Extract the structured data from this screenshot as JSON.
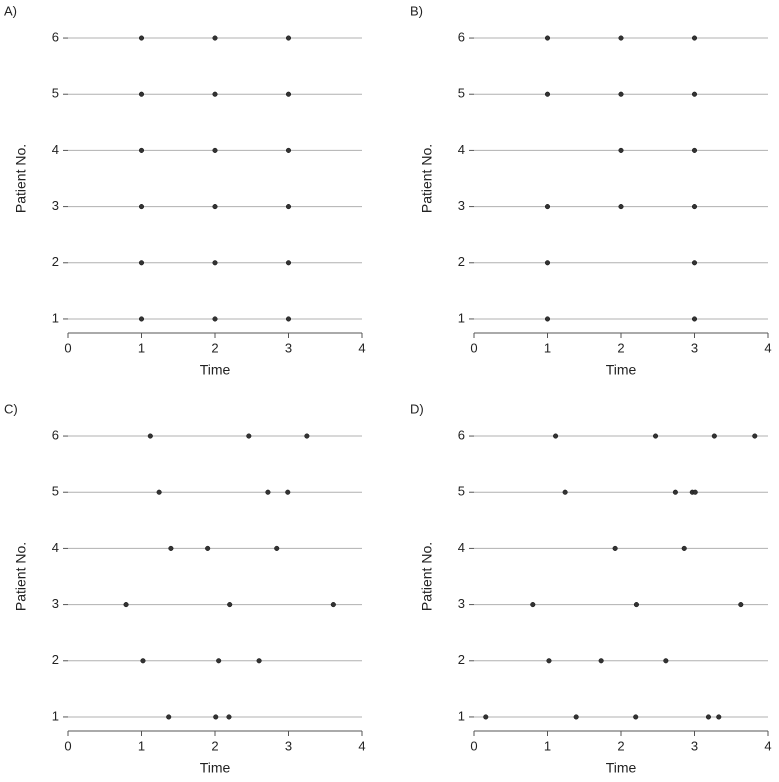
{
  "chart_data": [
    {
      "type": "scatter",
      "panel_label": "A)",
      "xlabel": "Time",
      "ylabel": "Patient No.",
      "x": [
        1,
        2,
        3,
        1,
        2,
        3,
        1,
        2,
        3,
        1,
        2,
        3,
        1,
        2,
        3,
        1,
        2,
        3
      ],
      "values": [
        1,
        1,
        1,
        2,
        2,
        2,
        3,
        3,
        3,
        4,
        4,
        4,
        5,
        5,
        5,
        6,
        6,
        6
      ],
      "xlim": [
        0,
        4
      ],
      "ylim": [
        0.75,
        6.25
      ],
      "xticks": [
        0,
        1,
        2,
        3,
        4
      ],
      "yticks": [
        1,
        2,
        3,
        4,
        5,
        6
      ],
      "color": "#333333",
      "grid": true
    },
    {
      "type": "scatter",
      "panel_label": "B)",
      "xlabel": "Time",
      "ylabel": "Patient No.",
      "x": [
        1,
        3,
        1,
        3,
        1,
        2,
        3,
        2,
        3,
        1,
        2,
        3,
        1,
        2,
        3
      ],
      "values": [
        1,
        1,
        2,
        2,
        3,
        3,
        3,
        4,
        4,
        5,
        5,
        5,
        6,
        6,
        6
      ],
      "xlim": [
        0,
        4
      ],
      "ylim": [
        0.75,
        6.25
      ],
      "xticks": [
        0,
        1,
        2,
        3,
        4
      ],
      "yticks": [
        1,
        2,
        3,
        4,
        5,
        6
      ],
      "color": "#333333",
      "grid": true
    },
    {
      "type": "scatter",
      "panel_label": "C)",
      "xlabel": "Time",
      "ylabel": "Patient No.",
      "x": [
        1.37,
        2.01,
        2.19,
        1.02,
        2.05,
        2.6,
        0.79,
        2.2,
        3.61,
        1.4,
        1.9,
        2.84,
        1.24,
        2.72,
        2.99,
        1.12,
        2.46,
        3.25
      ],
      "values": [
        1,
        1,
        1,
        2,
        2,
        2,
        3,
        3,
        3,
        4,
        4,
        4,
        5,
        5,
        5,
        6,
        6,
        6
      ],
      "xlim": [
        0,
        4
      ],
      "ylim": [
        0.75,
        6.25
      ],
      "xticks": [
        0,
        1,
        2,
        3,
        4
      ],
      "yticks": [
        1,
        2,
        3,
        4,
        5,
        6
      ],
      "color": "#333333",
      "grid": true
    },
    {
      "type": "scatter",
      "panel_label": "D)",
      "xlabel": "Time",
      "ylabel": "Patient No.",
      "x": [
        0.16,
        1.39,
        2.2,
        3.19,
        3.33,
        1.02,
        1.73,
        2.61,
        0.8,
        2.21,
        3.63,
        1.92,
        2.86,
        1.24,
        2.74,
        2.97,
        3.01,
        1.11,
        2.47,
        3.27,
        3.82
      ],
      "values": [
        1,
        1,
        1,
        1,
        1,
        2,
        2,
        2,
        3,
        3,
        3,
        4,
        4,
        5,
        5,
        5,
        5,
        6,
        6,
        6,
        6
      ],
      "xlim": [
        0,
        4
      ],
      "ylim": [
        0.75,
        6.25
      ],
      "xticks": [
        0,
        1,
        2,
        3,
        4
      ],
      "yticks": [
        1,
        2,
        3,
        4,
        5,
        6
      ],
      "color": "#333333",
      "grid": true
    }
  ]
}
